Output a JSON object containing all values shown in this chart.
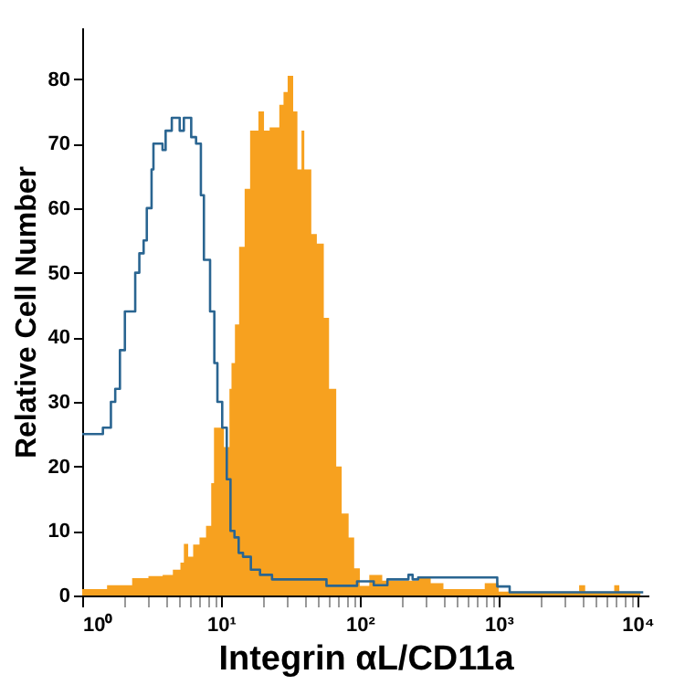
{
  "chart_data": {
    "type": "area",
    "xlabel": "Integrin αL/CD11a",
    "ylabel": "Relative Cell Number",
    "log": "x",
    "grid": false,
    "xlim": [
      1,
      12000
    ],
    "ylim": [
      0,
      88
    ],
    "xticks": [
      {
        "value": 1,
        "label": "10⁰"
      },
      {
        "value": 2,
        "label": null
      },
      {
        "value": 3,
        "label": null
      },
      {
        "value": 4,
        "label": null
      },
      {
        "value": 5,
        "label": null
      },
      {
        "value": 6,
        "label": null
      },
      {
        "value": 7,
        "label": null
      },
      {
        "value": 8,
        "label": null
      },
      {
        "value": 9,
        "label": null
      },
      {
        "value": 10,
        "label": "10¹"
      },
      {
        "value": 20,
        "label": null
      },
      {
        "value": 30,
        "label": null
      },
      {
        "value": 40,
        "label": null
      },
      {
        "value": 50,
        "label": null
      },
      {
        "value": 60,
        "label": null
      },
      {
        "value": 70,
        "label": null
      },
      {
        "value": 80,
        "label": null
      },
      {
        "value": 90,
        "label": null
      },
      {
        "value": 100,
        "label": "10²"
      },
      {
        "value": 200,
        "label": null
      },
      {
        "value": 300,
        "label": null
      },
      {
        "value": 400,
        "label": null
      },
      {
        "value": 500,
        "label": null
      },
      {
        "value": 600,
        "label": null
      },
      {
        "value": 700,
        "label": null
      },
      {
        "value": 800,
        "label": null
      },
      {
        "value": 900,
        "label": null
      },
      {
        "value": 1000,
        "label": "10³"
      },
      {
        "value": 2000,
        "label": null
      },
      {
        "value": 3000,
        "label": null
      },
      {
        "value": 4000,
        "label": null
      },
      {
        "value": 5000,
        "label": null
      },
      {
        "value": 6000,
        "label": null
      },
      {
        "value": 7000,
        "label": null
      },
      {
        "value": 8000,
        "label": null
      },
      {
        "value": 9000,
        "label": null
      },
      {
        "value": 10000,
        "label": "10⁴"
      }
    ],
    "yticks": [
      0,
      10,
      20,
      30,
      40,
      50,
      60,
      70,
      80
    ],
    "series": [
      {
        "color": "#f7a11f",
        "x": [
          1,
          1.5,
          1.51,
          2.29,
          3.0,
          3.8,
          4.5,
          5.1,
          5.4,
          5.8,
          6.3,
          7.0,
          7.8,
          8.5,
          8.9,
          10.5,
          11.5,
          11.9,
          12.6,
          13.5,
          14.8,
          16.2,
          18.6,
          20.4,
          22.4,
          24.5,
          26.3,
          28.2,
          30.2,
          33.1,
          35.5,
          38,
          39.8,
          44.7,
          49,
          55,
          60,
          67.6,
          74,
          83,
          91,
          100,
          117,
          145,
          263,
          324,
          400,
          794,
          1000,
          3800,
          4200,
          6800,
          7400,
          10500
        ],
        "values": [
          1,
          1,
          1.6,
          2.7,
          3,
          3.2,
          4,
          5.1,
          8,
          6,
          7.9,
          9,
          10.8,
          17.4,
          26,
          23,
          32,
          36,
          42,
          54,
          63,
          72,
          75,
          72,
          72.5,
          72.5,
          76,
          78,
          80.5,
          75,
          66,
          72,
          66,
          56,
          54.5,
          43,
          32,
          20,
          12.7,
          9,
          4.2,
          1.5,
          3.2,
          2.3,
          2.8,
          1.9,
          1,
          1.9,
          0.6,
          1.6,
          0.6,
          1.6,
          0.6,
          0.6
        ]
      },
      {
        "type": "step",
        "color": "#2a6591",
        "x": [
          1,
          1.41,
          1.61,
          1.73,
          1.87,
          2.03,
          2.41,
          2.58,
          2.77,
          2.92,
          3.16,
          3.26,
          3.79,
          3.99,
          4.42,
          5.04,
          5.4,
          6.1,
          6.61,
          7.16,
          7.53,
          8.34,
          8.95,
          9.42,
          10.2,
          11,
          11.7,
          12.5,
          13.4,
          14.4,
          16.4,
          19.1,
          23.3,
          57.5,
          95.5,
          126,
          158,
          224,
          240,
          263,
          977,
          1200,
          11000
        ],
        "values": [
          25,
          26,
          30,
          32,
          38,
          44,
          50,
          53,
          55,
          60,
          66,
          70,
          69,
          72,
          74,
          72,
          74,
          71,
          70,
          62,
          52,
          44,
          36,
          30,
          26,
          18,
          10,
          9,
          6.6,
          6,
          4,
          3.2,
          2.5,
          1.5,
          2.2,
          1.6,
          2.5,
          3.2,
          2.5,
          2.8,
          1.4,
          0.5,
          0.5
        ]
      }
    ]
  }
}
